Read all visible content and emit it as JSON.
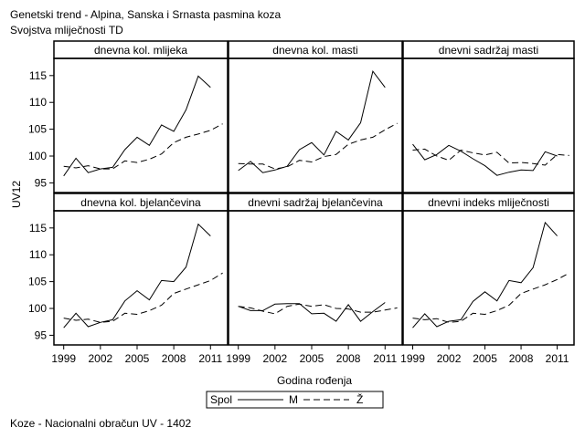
{
  "title": "Genetski trend - Alpina, Sanska i Srnasta pasmina koza",
  "subtitle": "Svojstva mliječnosti TD",
  "footnote": "Koze - Nacionalni obračun UV - 1402",
  "chart_data": {
    "type": "line",
    "xlabel": "Godina rođenja",
    "ylabel": "UV12",
    "x": [
      1999,
      2000,
      2001,
      2002,
      2003,
      2004,
      2005,
      2006,
      2007,
      2008,
      2009,
      2010,
      2011,
      2012
    ],
    "x_ticks": [
      1999,
      2002,
      2005,
      2008,
      2011
    ],
    "y_ticks": [
      95,
      100,
      105,
      110,
      115
    ],
    "ylim": [
      93.2,
      118.2
    ],
    "xlim": [
      1998.2,
      2012.4
    ],
    "legend": {
      "title": "Spol",
      "position": "bottom",
      "entries": [
        {
          "name": "M",
          "style": "solid"
        },
        {
          "name": "Ž",
          "style": "dashed"
        }
      ]
    },
    "panels": [
      {
        "title": "dnevna kol. mlijeka",
        "series": [
          {
            "name": "M",
            "style": "solid",
            "values": [
              96.3,
              99.6,
              96.9,
              97.6,
              97.9,
              101.2,
              103.5,
              102.0,
              105.8,
              104.6,
              108.6,
              114.9,
              112.8,
              null
            ]
          },
          {
            "name": "Ž",
            "style": "dashed",
            "values": [
              98.1,
              97.8,
              98.2,
              97.6,
              97.6,
              99.1,
              98.8,
              99.4,
              100.4,
              102.5,
              103.5,
              104.1,
              104.8,
              106.0
            ]
          }
        ]
      },
      {
        "title": "dnevna kol. masti",
        "series": [
          {
            "name": "M",
            "style": "solid",
            "values": [
              97.3,
              99.0,
              96.9,
              97.4,
              98.1,
              101.2,
              102.5,
              100.2,
              104.6,
              103.0,
              106.2,
              115.8,
              112.8,
              null
            ]
          },
          {
            "name": "Ž",
            "style": "dashed",
            "values": [
              98.6,
              98.5,
              98.5,
              97.6,
              98.0,
              99.2,
              98.9,
              99.9,
              100.3,
              102.2,
              103.0,
              103.5,
              104.9,
              106.1
            ]
          }
        ]
      },
      {
        "title": "dnevni sadržaj masti",
        "series": [
          {
            "name": "M",
            "style": "solid",
            "values": [
              102.2,
              99.3,
              100.3,
              102.0,
              100.9,
              99.5,
              98.2,
              96.4,
              97.0,
              97.4,
              97.3,
              100.8,
              100.0,
              null
            ]
          },
          {
            "name": "Ž",
            "style": "dashed",
            "values": [
              101.1,
              101.3,
              100.0,
              99.2,
              101.1,
              100.6,
              100.2,
              100.7,
              98.7,
              98.8,
              98.6,
              98.3,
              100.3,
              100.1
            ]
          }
        ]
      },
      {
        "title": "dnevna kol. bjelančevina",
        "series": [
          {
            "name": "M",
            "style": "solid",
            "values": [
              96.4,
              99.1,
              96.6,
              97.4,
              97.9,
              101.4,
              103.3,
              101.6,
              105.2,
              105.0,
              107.7,
              115.7,
              113.5,
              null
            ]
          },
          {
            "name": "Ž",
            "style": "dashed",
            "values": [
              98.2,
              97.8,
              98.0,
              97.4,
              97.6,
              99.1,
              98.9,
              99.6,
              100.6,
              102.8,
              103.6,
              104.4,
              105.2,
              106.6
            ]
          }
        ]
      },
      {
        "title": "dnevni sadržaj bjelančevina",
        "series": [
          {
            "name": "M",
            "style": "solid",
            "values": [
              100.4,
              99.6,
              99.6,
              100.8,
              100.9,
              100.9,
              99.0,
              99.1,
              97.6,
              100.7,
              97.6,
              99.4,
              101.1,
              null
            ]
          },
          {
            "name": "Ž",
            "style": "dashed",
            "values": [
              100.4,
              100.1,
              99.5,
              99.0,
              100.4,
              100.8,
              100.4,
              100.7,
              100.0,
              99.9,
              99.3,
              99.3,
              99.7,
              100.1
            ]
          }
        ]
      },
      {
        "title": "dnevni indeks mliječnosti",
        "series": [
          {
            "name": "M",
            "style": "solid",
            "values": [
              96.4,
              99.0,
              96.6,
              97.6,
              97.9,
              101.3,
              103.1,
              101.4,
              105.2,
              104.8,
              107.6,
              116.0,
              113.5,
              null
            ]
          },
          {
            "name": "Ž",
            "style": "dashed",
            "values": [
              98.2,
              97.9,
              98.1,
              97.4,
              97.6,
              99.1,
              98.9,
              99.6,
              100.6,
              102.8,
              103.6,
              104.4,
              105.4,
              106.6
            ]
          }
        ]
      }
    ]
  }
}
